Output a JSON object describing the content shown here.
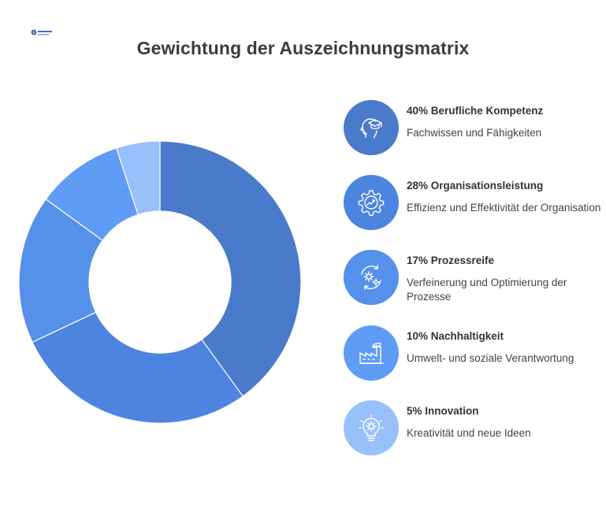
{
  "title": "Gewichtung der Auszeichnungsmatrix",
  "colors": {
    "slice": [
      "#4a7bca",
      "#4d84df",
      "#5590ea",
      "#5e9cf6",
      "#98c0fb"
    ],
    "divider": "#ffffff"
  },
  "chart_data": {
    "type": "pie",
    "title": "Gewichtung der Auszeichnungsmatrix",
    "categories": [
      "Berufliche Kompetenz",
      "Organisationsleistung",
      "Prozessreife",
      "Nachhaltigkeit",
      "Innovation"
    ],
    "values": [
      40,
      28,
      17,
      10,
      5
    ],
    "unit": "%"
  },
  "legend": [
    {
      "heading": "40% Berufliche Kompetenz",
      "description": "Fachwissen und Fähigkeiten",
      "icon": "head-graduation-cap-icon"
    },
    {
      "heading": "28% Organisationsleistung",
      "description": "Effizienz und Effektivität der Organisation",
      "icon": "gear-chart-icon"
    },
    {
      "heading": "17% Prozessreife",
      "description": "Verfeinerung und Optimierung der Prozesse",
      "icon": "gears-cycle-icon"
    },
    {
      "heading": "10% Nachhaltigkeit",
      "description": "Umwelt- und soziale Verantwortung",
      "icon": "factory-leaf-icon"
    },
    {
      "heading": "5% Innovation",
      "description": "Kreativität und neue Ideen",
      "icon": "lightbulb-gear-icon"
    }
  ]
}
